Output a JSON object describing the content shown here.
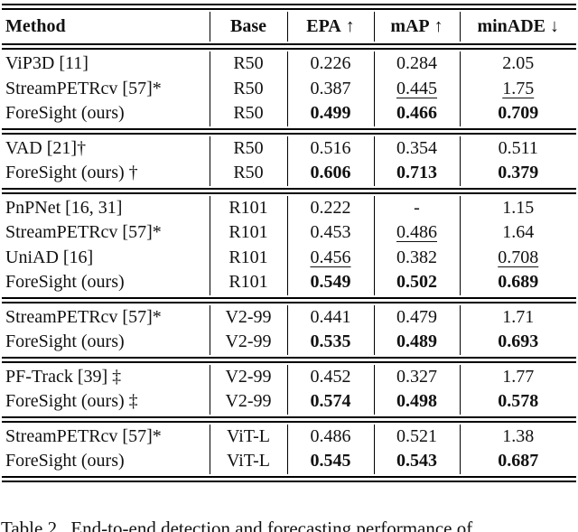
{
  "table": {
    "columns": [
      {
        "label": "Method",
        "arrow": ""
      },
      {
        "label": "Base",
        "arrow": ""
      },
      {
        "label": "EPA",
        "arrow": "↑"
      },
      {
        "label": "mAP",
        "arrow": "↑"
      },
      {
        "label": "minADE",
        "arrow": "↓"
      }
    ],
    "sections": [
      {
        "rows": [
          {
            "method": "ViP3D [11]",
            "base": "R50",
            "values": [
              {
                "text": "0.226",
                "style": "plain"
              },
              {
                "text": "0.284",
                "style": "plain"
              },
              {
                "text": "2.05",
                "style": "plain"
              }
            ]
          },
          {
            "method": "StreamPETRcv [57]*",
            "base": "R50",
            "values": [
              {
                "text": "0.387",
                "style": "plain"
              },
              {
                "text": "0.445",
                "style": "underline"
              },
              {
                "text": "1.75",
                "style": "underline"
              }
            ]
          },
          {
            "method": "ForeSight (ours)",
            "base": "R50",
            "values": [
              {
                "text": "0.499",
                "style": "bold"
              },
              {
                "text": "0.466",
                "style": "bold"
              },
              {
                "text": "0.709",
                "style": "bold"
              }
            ]
          }
        ]
      },
      {
        "rows": [
          {
            "method": "VAD [21]†",
            "base": "R50",
            "values": [
              {
                "text": "0.516",
                "style": "plain"
              },
              {
                "text": "0.354",
                "style": "plain"
              },
              {
                "text": "0.511",
                "style": "plain"
              }
            ]
          },
          {
            "method": "ForeSight (ours) †",
            "base": "R50",
            "values": [
              {
                "text": "0.606",
                "style": "bold"
              },
              {
                "text": "0.713",
                "style": "bold"
              },
              {
                "text": "0.379",
                "style": "bold"
              }
            ]
          }
        ]
      },
      {
        "rows": [
          {
            "method": "PnPNet [16, 31]",
            "base": "R101",
            "values": [
              {
                "text": "0.222",
                "style": "plain"
              },
              {
                "text": "-",
                "style": "plain"
              },
              {
                "text": "1.15",
                "style": "plain"
              }
            ]
          },
          {
            "method": "StreamPETRcv [57]*",
            "base": "R101",
            "values": [
              {
                "text": "0.453",
                "style": "plain"
              },
              {
                "text": "0.486",
                "style": "underline"
              },
              {
                "text": "1.64",
                "style": "plain"
              }
            ]
          },
          {
            "method": "UniAD [16]",
            "base": "R101",
            "values": [
              {
                "text": "0.456",
                "style": "underline"
              },
              {
                "text": "0.382",
                "style": "plain"
              },
              {
                "text": "0.708",
                "style": "underline"
              }
            ]
          },
          {
            "method": "ForeSight (ours)",
            "base": "R101",
            "values": [
              {
                "text": "0.549",
                "style": "bold"
              },
              {
                "text": "0.502",
                "style": "bold"
              },
              {
                "text": "0.689",
                "style": "bold"
              }
            ]
          }
        ]
      },
      {
        "rows": [
          {
            "method": "StreamPETRcv [57]*",
            "base": "V2-99",
            "values": [
              {
                "text": "0.441",
                "style": "plain"
              },
              {
                "text": "0.479",
                "style": "plain"
              },
              {
                "text": "1.71",
                "style": "plain"
              }
            ]
          },
          {
            "method": "ForeSight (ours)",
            "base": "V2-99",
            "values": [
              {
                "text": "0.535",
                "style": "bold"
              },
              {
                "text": "0.489",
                "style": "bold"
              },
              {
                "text": "0.693",
                "style": "bold"
              }
            ]
          }
        ]
      },
      {
        "rows": [
          {
            "method": "PF-Track [39] ‡",
            "base": "V2-99",
            "values": [
              {
                "text": "0.452",
                "style": "plain"
              },
              {
                "text": "0.327",
                "style": "plain"
              },
              {
                "text": "1.77",
                "style": "plain"
              }
            ]
          },
          {
            "method": "ForeSight (ours) ‡",
            "base": "V2-99",
            "values": [
              {
                "text": "0.574",
                "style": "bold"
              },
              {
                "text": "0.498",
                "style": "bold"
              },
              {
                "text": "0.578",
                "style": "bold"
              }
            ]
          }
        ]
      },
      {
        "rows": [
          {
            "method": "StreamPETRcv [57]*",
            "base": "ViT-L",
            "values": [
              {
                "text": "0.486",
                "style": "plain"
              },
              {
                "text": "0.521",
                "style": "plain"
              },
              {
                "text": "1.38",
                "style": "plain"
              }
            ]
          },
          {
            "method": "ForeSight (ours)",
            "base": "ViT-L",
            "values": [
              {
                "text": "0.545",
                "style": "bold"
              },
              {
                "text": "0.543",
                "style": "bold"
              },
              {
                "text": "0.687",
                "style": "bold"
              }
            ]
          }
        ]
      }
    ]
  },
  "caption": {
    "tag": "Table 2.",
    "text": "End-to-end detection and forecasting performance of"
  }
}
